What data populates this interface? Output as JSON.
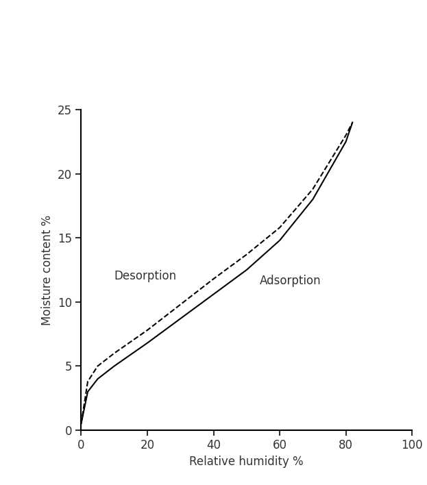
{
  "chart_data": {
    "type": "line",
    "x_label": "Relative humidity %",
    "y_label": "Moisture content %",
    "series": [
      {
        "name": "Desorption",
        "color": "#000000",
        "line_style": "dashed",
        "x": [
          0,
          2,
          5,
          10,
          20,
          30,
          40,
          50,
          60,
          70,
          80,
          82
        ],
        "values": [
          0.5,
          3.8,
          5.0,
          6.0,
          7.8,
          9.8,
          11.8,
          13.7,
          15.8,
          18.8,
          23.0,
          24.0
        ]
      },
      {
        "name": "Adsorption",
        "color": "#000000",
        "line_style": "solid",
        "x": [
          0,
          2,
          5,
          10,
          20,
          30,
          40,
          50,
          60,
          70,
          80,
          82
        ],
        "values": [
          0.5,
          3.0,
          4.0,
          5.0,
          6.8,
          8.7,
          10.6,
          12.5,
          14.8,
          18.0,
          22.5,
          24.0
        ]
      }
    ],
    "xlim": [
      0,
      100
    ],
    "xticks": [
      0,
      20,
      40,
      60,
      80,
      100
    ],
    "ylim": [
      0,
      25
    ],
    "yticks": [
      0,
      5,
      10,
      15,
      20,
      25
    ],
    "grid": false
  }
}
